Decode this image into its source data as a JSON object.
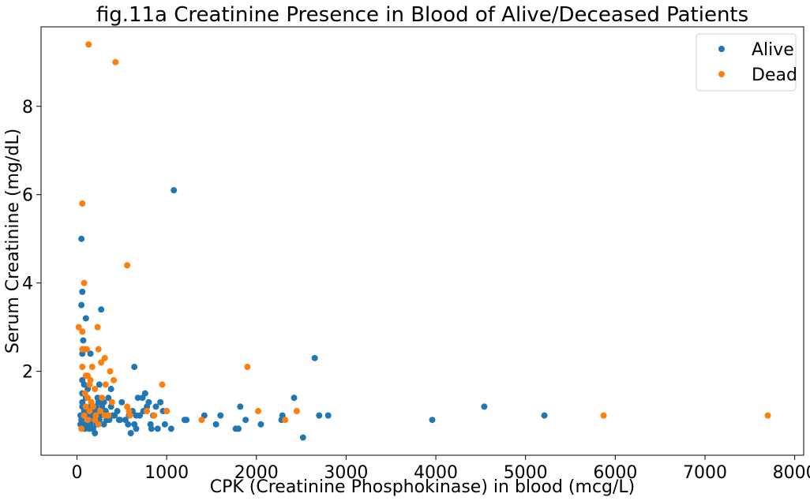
{
  "chart_data": {
    "type": "scatter",
    "title": "fig.11a Creatinine Presence in Blood of Alive/Deceased Patients",
    "xlabel": "CPK (Creatinine Phosphokinase) in blood (mcg/L)",
    "ylabel": "Serum Creatinine (mg/dL)",
    "xlim": [
      -400,
      8100
    ],
    "ylim": [
      0.1,
      9.8
    ],
    "xticks": [
      0,
      1000,
      2000,
      3000,
      4000,
      5000,
      6000,
      7000,
      8000
    ],
    "yticks": [
      2,
      4,
      6,
      8
    ],
    "grid": false,
    "legend_position": "top-right",
    "series": [
      {
        "name": "Alive",
        "color": "#1f77b4",
        "points": [
          [
            1080,
            6.1
          ],
          [
            50,
            5.0
          ],
          [
            60,
            3.8
          ],
          [
            50,
            3.5
          ],
          [
            100,
            3.2
          ],
          [
            270,
            3.4
          ],
          [
            70,
            2.7
          ],
          [
            60,
            2.4
          ],
          [
            150,
            2.4
          ],
          [
            640,
            2.1
          ],
          [
            2650,
            2.3
          ],
          [
            2420,
            1.4
          ],
          [
            60,
            1.8
          ],
          [
            80,
            1.7
          ],
          [
            120,
            1.6
          ],
          [
            250,
            1.7
          ],
          [
            380,
            1.6
          ],
          [
            60,
            1.5
          ],
          [
            100,
            1.4
          ],
          [
            160,
            1.3
          ],
          [
            230,
            1.4
          ],
          [
            300,
            1.3
          ],
          [
            350,
            1.4
          ],
          [
            500,
            1.3
          ],
          [
            680,
            1.4
          ],
          [
            730,
            1.4
          ],
          [
            760,
            1.5
          ],
          [
            800,
            1.3
          ],
          [
            60,
            1.2
          ],
          [
            80,
            1.1
          ],
          [
            150,
            1.2
          ],
          [
            200,
            1.1
          ],
          [
            280,
            1.2
          ],
          [
            400,
            1.0
          ],
          [
            470,
            0.9
          ],
          [
            580,
            1.0
          ],
          [
            620,
            1.1
          ],
          [
            700,
            1.0
          ],
          [
            780,
            1.2
          ],
          [
            850,
            1.0
          ],
          [
            930,
            1.3
          ],
          [
            960,
            1.1
          ],
          [
            1000,
            1.1
          ],
          [
            1200,
            0.9
          ],
          [
            1220,
            0.9
          ],
          [
            1420,
            1.0
          ],
          [
            1600,
            1.0
          ],
          [
            1550,
            0.8
          ],
          [
            1770,
            0.7
          ],
          [
            1800,
            0.7
          ],
          [
            1820,
            1.2
          ],
          [
            1880,
            0.9
          ],
          [
            2050,
            0.8
          ],
          [
            2280,
            0.9
          ],
          [
            2290,
            1.0
          ],
          [
            2520,
            0.5
          ],
          [
            2700,
            1.0
          ],
          [
            2800,
            1.0
          ],
          [
            3960,
            0.9
          ],
          [
            4540,
            1.2
          ],
          [
            5210,
            1.0
          ],
          [
            50,
            0.9
          ],
          [
            70,
            0.8
          ],
          [
            90,
            0.7
          ],
          [
            120,
            0.9
          ],
          [
            150,
            0.8
          ],
          [
            180,
            0.7
          ],
          [
            200,
            0.6
          ],
          [
            250,
            0.9
          ],
          [
            300,
            0.8
          ],
          [
            330,
            0.9
          ],
          [
            540,
            0.9
          ],
          [
            570,
            0.8
          ],
          [
            600,
            0.6
          ],
          [
            640,
            0.8
          ],
          [
            660,
            0.7
          ],
          [
            820,
            0.8
          ],
          [
            830,
            0.7
          ],
          [
            900,
            0.7
          ],
          [
            980,
            0.8
          ],
          [
            1050,
            0.7
          ],
          [
            40,
            1.0
          ],
          [
            60,
            1.3
          ],
          [
            110,
            1.0
          ],
          [
            130,
            1.1
          ],
          [
            170,
            1.0
          ],
          [
            190,
            0.9
          ],
          [
            220,
            0.8
          ],
          [
            260,
            1.0
          ],
          [
            320,
            1.1
          ],
          [
            420,
            1.0
          ],
          [
            450,
            1.1
          ],
          [
            660,
            1.0
          ],
          [
            740,
            1.1
          ],
          [
            880,
            1.2
          ],
          [
            40,
            0.8
          ],
          [
            70,
            1.0
          ],
          [
            90,
            1.2
          ],
          [
            110,
            0.8
          ],
          [
            140,
            0.7
          ],
          [
            210,
            1.2
          ],
          [
            240,
            1.3
          ],
          [
            360,
            0.9
          ],
          [
            380,
            1.2
          ],
          [
            480,
            0.9
          ]
        ]
      },
      {
        "name": "Dead",
        "color": "#ff7f0e",
        "points": [
          [
            130,
            9.4
          ],
          [
            430,
            9.0
          ],
          [
            60,
            5.8
          ],
          [
            560,
            4.4
          ],
          [
            80,
            4.0
          ],
          [
            20,
            3.0
          ],
          [
            60,
            2.9
          ],
          [
            230,
            3.0
          ],
          [
            90,
            2.5
          ],
          [
            60,
            2.5
          ],
          [
            110,
            2.5
          ],
          [
            240,
            2.5
          ],
          [
            60,
            2.1
          ],
          [
            170,
            2.1
          ],
          [
            270,
            2.2
          ],
          [
            310,
            2.3
          ],
          [
            370,
            2.0
          ],
          [
            1900,
            2.1
          ],
          [
            410,
            1.8
          ],
          [
            950,
            1.7
          ],
          [
            100,
            1.9
          ],
          [
            120,
            1.9
          ],
          [
            150,
            1.8
          ],
          [
            140,
            1.7
          ],
          [
            200,
            1.6
          ],
          [
            320,
            1.7
          ],
          [
            90,
            1.5
          ],
          [
            120,
            1.4
          ],
          [
            160,
            1.3
          ],
          [
            280,
            1.4
          ],
          [
            390,
            1.3
          ],
          [
            100,
            1.2
          ],
          [
            140,
            1.1
          ],
          [
            180,
            1.2
          ],
          [
            210,
            1.0
          ],
          [
            260,
            1.1
          ],
          [
            310,
            1.0
          ],
          [
            560,
            1.2
          ],
          [
            580,
            1.1
          ],
          [
            590,
            1.0
          ],
          [
            860,
            1.0
          ],
          [
            1000,
            1.1
          ],
          [
            2020,
            1.1
          ],
          [
            2450,
            1.1
          ],
          [
            1390,
            0.9
          ],
          [
            2320,
            0.9
          ],
          [
            5870,
            1.0
          ],
          [
            7700,
            1.0
          ],
          [
            50,
            0.7
          ],
          [
            80,
            1.0
          ],
          [
            120,
            0.9
          ],
          [
            200,
            0.9
          ],
          [
            240,
            0.8
          ],
          [
            350,
            1.0
          ],
          [
            780,
            1.1
          ]
        ]
      }
    ]
  }
}
